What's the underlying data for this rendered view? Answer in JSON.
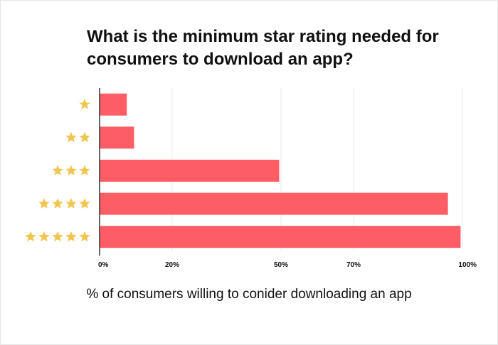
{
  "chart_data": {
    "type": "bar",
    "orientation": "horizontal",
    "title": "What is the minimum star rating needed for consumers to download an app?",
    "xlabel": "% of consumers willing to conider downloading an app",
    "ylabel": "",
    "categories": [
      1,
      2,
      3,
      4,
      5
    ],
    "category_display": "stars",
    "values": [
      7.5,
      9.5,
      49.5,
      96,
      99.5
    ],
    "xlim": [
      0,
      100
    ],
    "xticks": [
      0,
      20,
      50,
      70,
      100
    ],
    "xtick_labels": [
      "0%",
      "20%",
      "50%",
      "70%",
      "100%"
    ],
    "grid": true,
    "bar_color": "#fd5e66",
    "star_color": "#f1c550"
  }
}
